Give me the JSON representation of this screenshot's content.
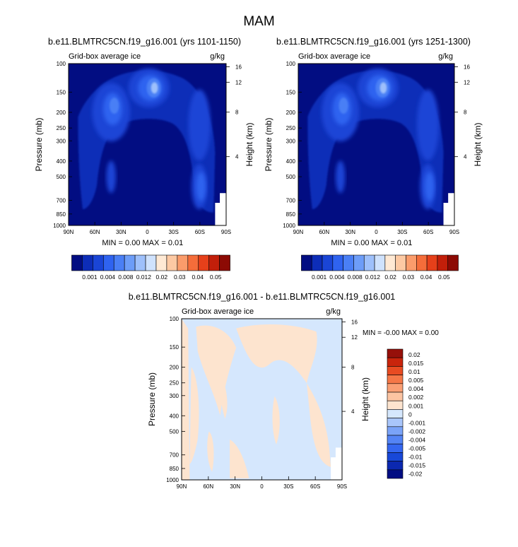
{
  "page": {
    "title": "MAM"
  },
  "colors": {
    "background_fill": "#020d82",
    "ice_levels": [
      "#020d82",
      "#0d2db8",
      "#1a45d6",
      "#2f63f0",
      "#4a7ff5",
      "#6d9df8",
      "#9ec0fb",
      "#cfe2fd",
      "#ffe9d4",
      "#fdc9a3",
      "#fb9c6b",
      "#f56d3a",
      "#e6401a",
      "#c21f0a",
      "#8c0a04"
    ],
    "diff_levels": [
      "#020d82",
      "#0b28b0",
      "#1848d8",
      "#3466f0",
      "#5484f5",
      "#7aa3f8",
      "#a9c6fb",
      "#d5e7fd",
      "#fde4cf",
      "#fcc4a2",
      "#fa9f74",
      "#f57747",
      "#e84b22",
      "#c9240c",
      "#96100a"
    ],
    "diff_pos": "#fde4cf",
    "diff_neg": "#d5e7fd"
  },
  "chart_data": [
    {
      "type": "heatmap",
      "title": "b.e11.BLMTRC5CN.f19_g16.001 (yrs 1101-1150)",
      "left_label": "Grid-box average ice",
      "right_label": "g/kg",
      "xlabel": "",
      "ylabel": "Pressure (mb)",
      "ylabel_right": "Height (km)",
      "x_ticks": [
        "90N",
        "60N",
        "30N",
        "0",
        "30S",
        "60S",
        "90S"
      ],
      "y_ticks": [
        "100",
        "150",
        "200",
        "250",
        "300",
        "400",
        "500",
        "700",
        "850",
        "1000"
      ],
      "height_ticks": [
        "16",
        "12",
        "8",
        "4"
      ],
      "stats": {
        "min_label": "MIN =",
        "min": "0.00",
        "max_label": "MAX =",
        "max": "0.01"
      },
      "colorbar_labels": [
        "0.001",
        "0.004",
        "0.008",
        "0.012",
        "0.02",
        "0.03",
        "0.04",
        "0.05"
      ],
      "ylim": [
        1000,
        100
      ]
    },
    {
      "type": "heatmap",
      "title": "b.e11.BLMTRC5CN.f19_g16.001 (yrs 1251-1300)",
      "left_label": "Grid-box average ice",
      "right_label": "g/kg",
      "xlabel": "",
      "ylabel": "Pressure (mb)",
      "ylabel_right": "Height (km)",
      "x_ticks": [
        "90N",
        "60N",
        "30N",
        "0",
        "30S",
        "60S",
        "90S"
      ],
      "y_ticks": [
        "100",
        "150",
        "200",
        "250",
        "300",
        "400",
        "500",
        "700",
        "850",
        "1000"
      ],
      "height_ticks": [
        "16",
        "12",
        "8",
        "4"
      ],
      "stats": {
        "min_label": "MIN =",
        "min": "0.00",
        "max_label": "MAX =",
        "max": "0.01"
      },
      "colorbar_labels": [
        "0.001",
        "0.004",
        "0.008",
        "0.012",
        "0.02",
        "0.03",
        "0.04",
        "0.05"
      ],
      "ylim": [
        1000,
        100
      ]
    },
    {
      "type": "heatmap",
      "title": "b.e11.BLMTRC5CN.f19_g16.001 - b.e11.BLMTRC5CN.f19_g16.001",
      "left_label": "Grid-box average ice",
      "right_label": "g/kg",
      "xlabel": "",
      "ylabel": "Pressure (mb)",
      "ylabel_right": "Height (km)",
      "x_ticks": [
        "90N",
        "60N",
        "30N",
        "0",
        "30S",
        "60S",
        "90S"
      ],
      "y_ticks": [
        "100",
        "150",
        "200",
        "250",
        "300",
        "400",
        "500",
        "700",
        "850",
        "1000"
      ],
      "height_ticks": [
        "16",
        "12",
        "8",
        "4"
      ],
      "stats": {
        "min_label": "MIN =",
        "min": "-0.00",
        "max_label": "MAX =",
        "max": "0.00"
      },
      "colorbar_labels": [
        "0.02",
        "0.015",
        "0.01",
        "0.005",
        "0.004",
        "0.002",
        "0.001",
        "0",
        "-0.001",
        "-0.002",
        "-0.004",
        "-0.005",
        "-0.01",
        "-0.015",
        "-0.02"
      ],
      "ylim": [
        1000,
        100
      ]
    }
  ]
}
